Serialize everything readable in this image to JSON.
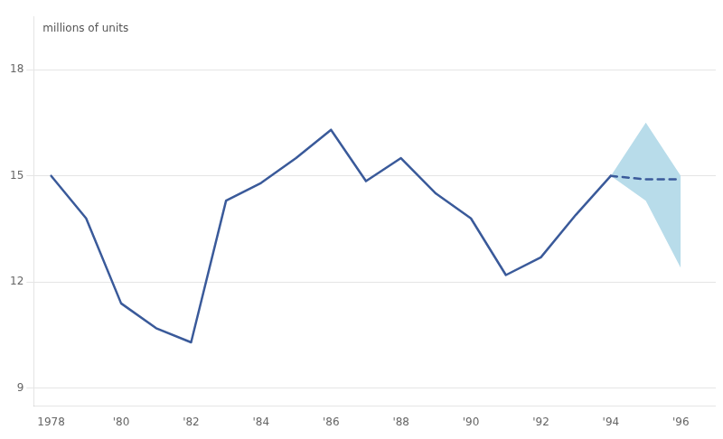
{
  "chart_data": {
    "type": "line",
    "ylabel": "millions of units",
    "series": [
      {
        "type": "area",
        "x": [
          1994,
          1995,
          1996
        ],
        "lower": [
          15.0,
          14.3,
          12.4
        ],
        "upper": [
          15.0,
          16.5,
          15.0
        ],
        "color": "#b8dcea"
      },
      {
        "type": "line",
        "x": [
          1978,
          1979,
          1980,
          1981,
          1982,
          1983,
          1984,
          1985,
          1986,
          1987,
          1988,
          1989,
          1990,
          1991,
          1992,
          1993,
          1994
        ],
        "values": [
          15.0,
          13.8,
          11.4,
          10.7,
          10.3,
          14.3,
          14.8,
          15.5,
          16.3,
          14.85,
          15.5,
          14.5,
          13.8,
          12.2,
          12.7,
          13.9,
          15.0
        ],
        "color": "#3a5a9a",
        "line_style": "solid"
      },
      {
        "type": "line",
        "x": [
          1994,
          1995,
          1996
        ],
        "values": [
          15.0,
          14.9,
          14.9
        ],
        "color": "#3a5a9a",
        "line_style": "dashed"
      }
    ],
    "xlim": [
      1977.5,
      1997.0
    ],
    "xticks": [
      1978,
      {
        "value": 1980,
        "label": "'80"
      },
      {
        "value": 1982,
        "label": "'82"
      },
      {
        "value": 1984,
        "label": "'84"
      },
      {
        "value": 1986,
        "label": "'86"
      },
      {
        "value": 1988,
        "label": "'88"
      },
      {
        "value": 1990,
        "label": "'90"
      },
      {
        "value": 1992,
        "label": "'92"
      },
      {
        "value": 1994,
        "label": "'94"
      },
      {
        "value": 1996,
        "label": "'96"
      }
    ],
    "ylim": [
      8.5,
      19.5
    ],
    "yticks": [
      9,
      12,
      15,
      18
    ],
    "grid": "y"
  }
}
